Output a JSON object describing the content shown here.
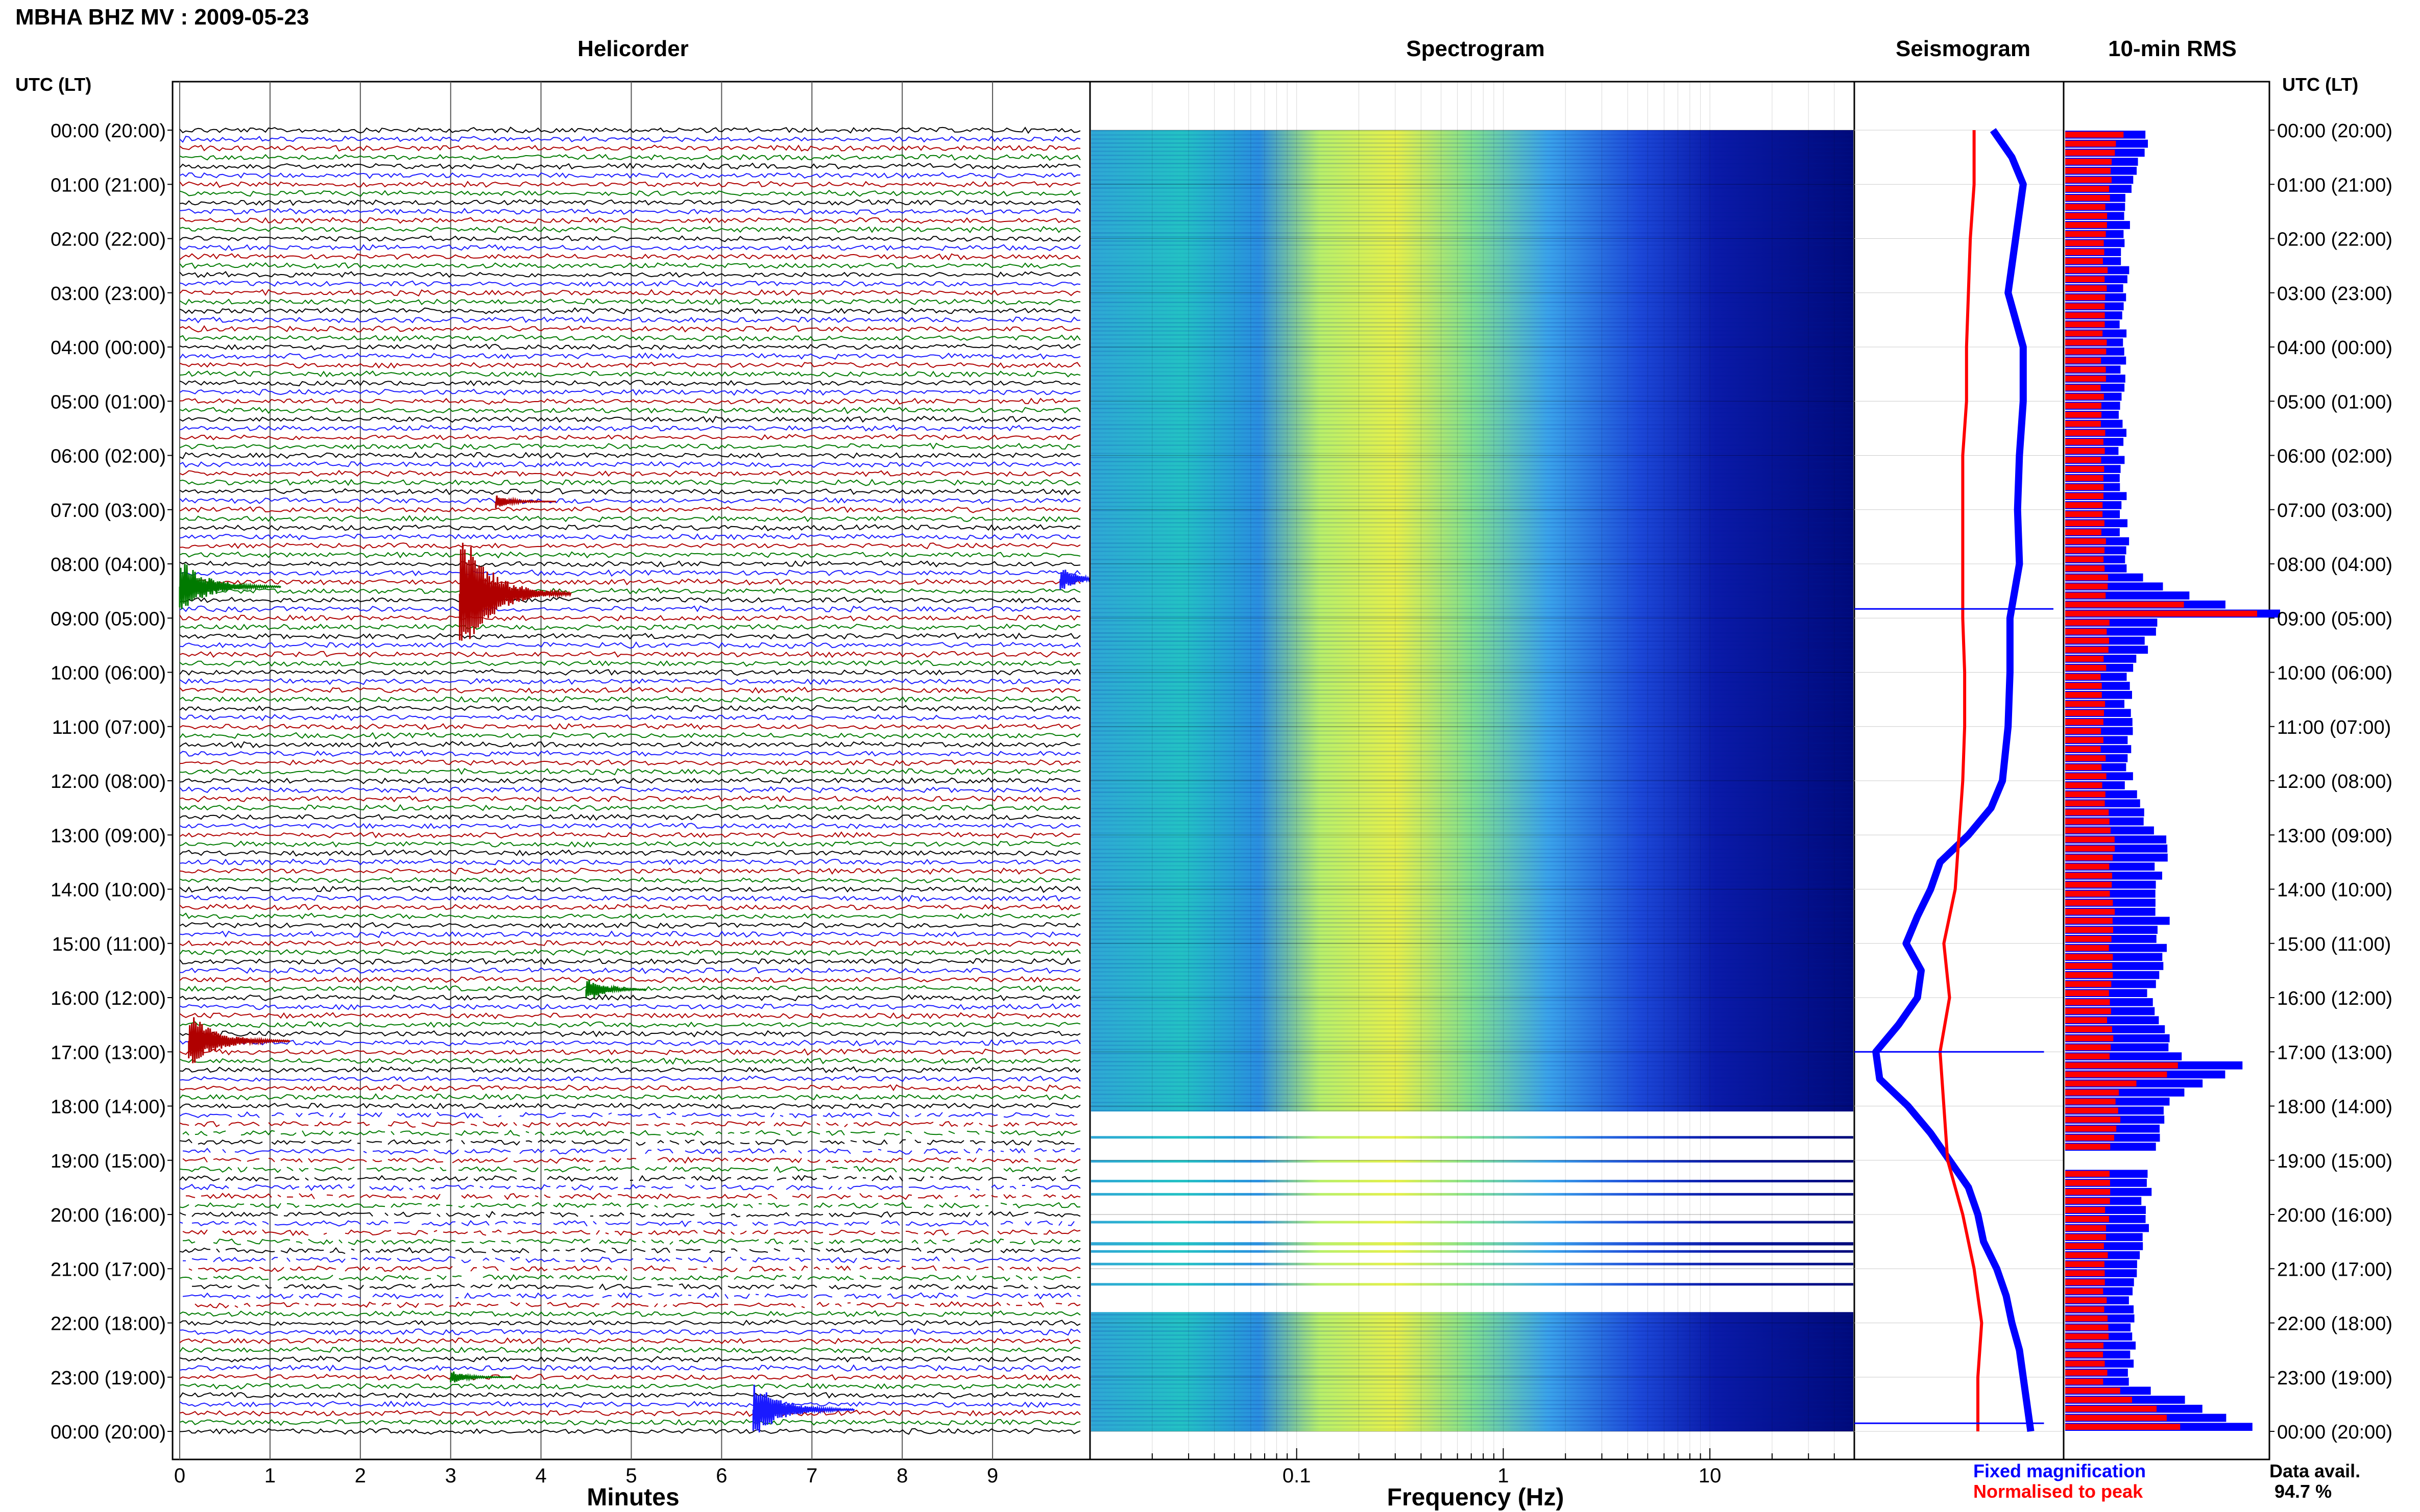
{
  "figure": {
    "title": "MBHA BHZ MV : 2009-05-23",
    "panel_titles": {
      "helicorder": "Helicorder",
      "spectrogram": "Spectrogram",
      "seismogram": "Seismogram",
      "rms": "10-min RMS"
    },
    "time_axis_label": "UTC (LT)",
    "legend": {
      "fixed": "Fixed magnification",
      "normalised": "Normalised to peak"
    },
    "data_avail_label": "Data avail.",
    "data_avail_value": "94.7 %",
    "colors": {
      "blue": "#0000ff",
      "red": "#ff0000",
      "trace_black": "#000000",
      "trace_blue": "#1a1aff",
      "trace_red": "#b00000",
      "trace_green": "#007a00"
    }
  },
  "chart_data": [
    {
      "type": "line",
      "panel": "helicorder",
      "title": "Helicorder",
      "xlabel": "Minutes",
      "xlim": [
        0,
        10
      ],
      "xticks": [
        "0",
        "1",
        "2",
        "3",
        "4",
        "5",
        "6",
        "7",
        "8",
        "9"
      ],
      "ylabel": "UTC (LT)",
      "y_tick_labels": [
        "00:00 (20:00)",
        "01:00 (21:00)",
        "02:00 (22:00)",
        "03:00 (23:00)",
        "04:00 (00:00)",
        "05:00 (01:00)",
        "06:00 (02:00)",
        "07:00 (03:00)",
        "08:00 (04:00)",
        "09:00 (05:00)",
        "10:00 (06:00)",
        "11:00 (07:00)",
        "12:00 (08:00)",
        "13:00 (09:00)",
        "14:00 (10:00)",
        "15:00 (11:00)",
        "16:00 (12:00)",
        "17:00 (13:00)",
        "18:00 (14:00)",
        "19:00 (15:00)",
        "20:00 (16:00)",
        "21:00 (17:00)",
        "22:00 (18:00)",
        "23:00 (19:00)",
        "00:00 (20:00)"
      ],
      "traces_per_hour": 6,
      "grid": true,
      "events": [
        {
          "hour": 8.42,
          "minute": 0.0,
          "amplitude": "large",
          "trace": "green"
        },
        {
          "hour": 8.55,
          "minute": 3.1,
          "amplitude": "very large",
          "trace": "red"
        },
        {
          "hour": 8.28,
          "minute": 9.75,
          "amplitude": "medium",
          "trace": "blue"
        },
        {
          "hour": 6.85,
          "minute": 3.5,
          "amplitude": "small",
          "trace": "red"
        },
        {
          "hour": 15.85,
          "minute": 4.5,
          "amplitude": "medium",
          "trace": "green"
        },
        {
          "hour": 16.8,
          "minute": 0.1,
          "amplitude": "large",
          "trace": "red"
        },
        {
          "hour": 23.0,
          "minute": 3.0,
          "amplitude": "small",
          "trace": "green"
        },
        {
          "hour": 23.6,
          "minute": 6.35,
          "amplitude": "large",
          "trace": "blue"
        }
      ],
      "gap_hours": [
        18.1,
        21.8
      ]
    },
    {
      "type": "heatmap",
      "panel": "spectrogram",
      "title": "Spectrogram",
      "xlabel": "Frequency (Hz)",
      "x_scale": "log",
      "xlim": [
        0.01,
        50
      ],
      "xticks": [
        "0.1",
        "1",
        "10"
      ],
      "peak_band_hz": [
        0.15,
        0.6
      ],
      "gap_hours": [
        18.1,
        21.8
      ]
    },
    {
      "type": "line",
      "panel": "seismogram",
      "title": "Seismogram",
      "series": [
        {
          "name": "Fixed magnification",
          "color": "#0000ff",
          "hours": [
            0,
            0.5,
            1,
            2,
            3,
            4,
            5,
            6,
            7,
            8,
            9,
            10,
            11,
            12,
            12.5,
            13,
            13.5,
            14,
            14.5,
            15,
            15.5,
            16,
            16.5,
            17,
            17.5,
            18,
            18.5,
            19,
            19.5,
            20,
            20.5,
            21,
            21.5,
            22,
            22.5,
            23,
            23.5,
            24
          ],
          "values": [
            0.68,
            0.78,
            0.84,
            0.8,
            0.76,
            0.84,
            0.84,
            0.82,
            0.81,
            0.82,
            0.77,
            0.77,
            0.76,
            0.73,
            0.67,
            0.55,
            0.4,
            0.35,
            0.28,
            0.22,
            0.3,
            0.28,
            0.18,
            0.06,
            0.08,
            0.23,
            0.35,
            0.45,
            0.55,
            0.6,
            0.63,
            0.7,
            0.75,
            0.78,
            0.82,
            0.84,
            0.86,
            0.88
          ]
        },
        {
          "name": "Normalised to peak",
          "color": "#ff0000",
          "hours": [
            0,
            1,
            2,
            3,
            4,
            5,
            6,
            7,
            8,
            9,
            10,
            11,
            12,
            13,
            14,
            15,
            16,
            17,
            18,
            19,
            20,
            21,
            22,
            23,
            24
          ],
          "values": [
            0.58,
            0.58,
            0.56,
            0.55,
            0.54,
            0.54,
            0.52,
            0.52,
            0.52,
            0.52,
            0.53,
            0.53,
            0.52,
            0.5,
            0.48,
            0.42,
            0.45,
            0.4,
            0.42,
            0.44,
            0.52,
            0.58,
            0.62,
            0.6,
            0.6
          ]
        }
      ]
    },
    {
      "type": "bar",
      "panel": "rms",
      "title": "10-min RMS",
      "orientation": "horizontal",
      "series": [
        {
          "name": "Fixed magnification",
          "color": "#0000ff",
          "hours": [
            0,
            1,
            2,
            3,
            4,
            5,
            6,
            7,
            8,
            8.5,
            8.83,
            9,
            10,
            11,
            12,
            13,
            14,
            15,
            16,
            17,
            17.2,
            17.6,
            18,
            19,
            20,
            21,
            22,
            23,
            23.85
          ],
          "values": [
            0.38,
            0.3,
            0.28,
            0.28,
            0.27,
            0.27,
            0.27,
            0.27,
            0.29,
            0.6,
            0.99,
            0.45,
            0.3,
            0.3,
            0.3,
            0.45,
            0.45,
            0.47,
            0.4,
            0.55,
            0.95,
            0.55,
            0.5,
            0.4,
            0.38,
            0.32,
            0.32,
            0.3,
            0.88
          ]
        },
        {
          "name": "Normalised to peak",
          "color": "#ff0000",
          "hours": [
            0,
            1,
            2,
            3,
            4,
            5,
            6,
            7,
            8,
            8.5,
            8.83,
            9,
            10,
            11,
            12,
            13,
            14,
            15,
            16,
            17,
            17.2,
            17.6,
            18,
            19,
            20,
            21,
            22,
            23,
            23.85
          ],
          "values": [
            0.26,
            0.2,
            0.19,
            0.19,
            0.18,
            0.18,
            0.18,
            0.18,
            0.19,
            0.2,
            1.0,
            0.2,
            0.18,
            0.18,
            0.18,
            0.22,
            0.22,
            0.22,
            0.2,
            0.22,
            0.55,
            0.26,
            0.25,
            0.2,
            0.2,
            0.18,
            0.19,
            0.19,
            0.55
          ]
        }
      ]
    }
  ]
}
